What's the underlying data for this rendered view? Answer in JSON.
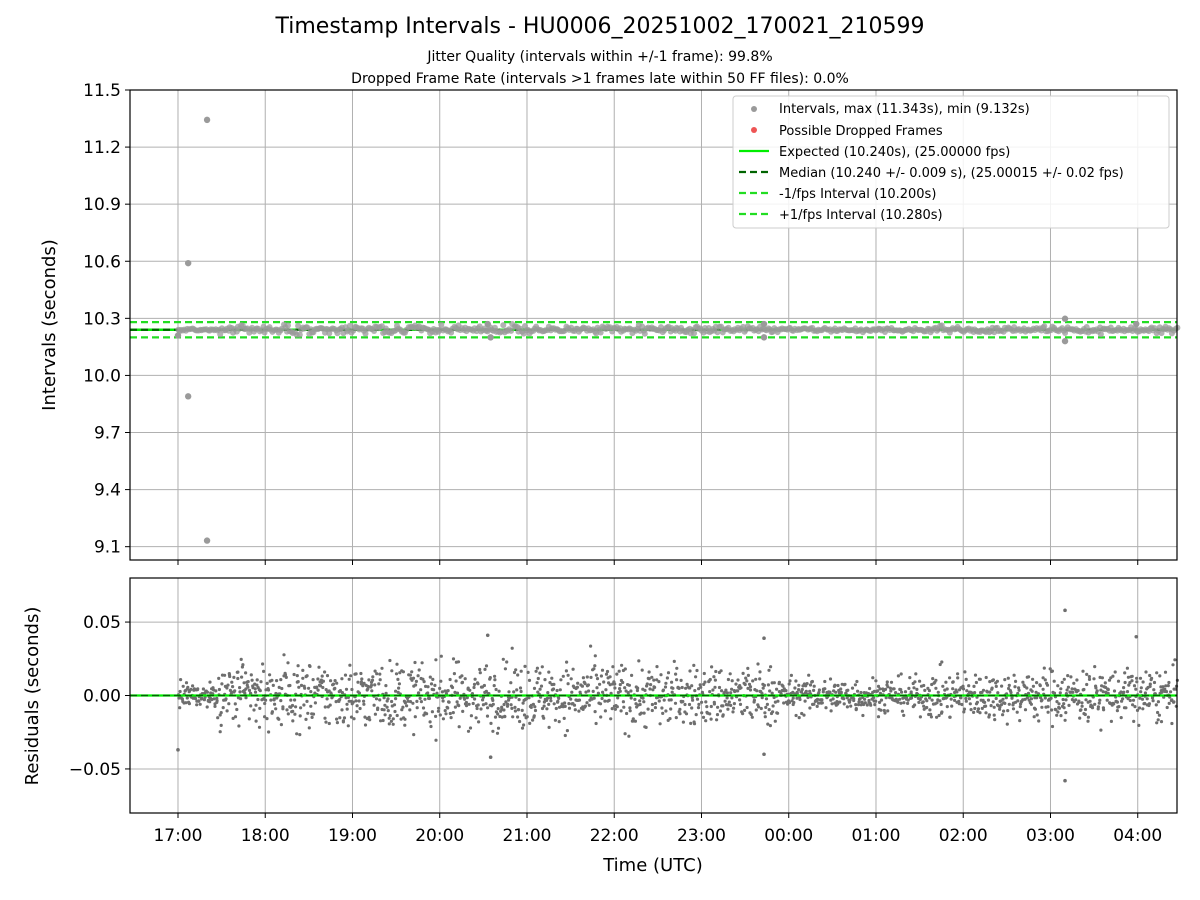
{
  "chart_data": [
    {
      "type": "scatter",
      "title": "Timestamp Intervals - HU0006_20251002_170021_210599",
      "subtitle_1": "Jitter Quality (intervals within +/-1 frame): 99.8%",
      "subtitle_2": "Dropped Frame Rate (intervals >1 frames late within 50 FF files): 0.0%",
      "ylabel": "Intervals (seconds)",
      "ylim": [
        9.03,
        11.5
      ],
      "yticks": [
        "9.1",
        "9.4",
        "9.7",
        "10.0",
        "10.3",
        "10.6",
        "10.9",
        "11.2",
        "11.5"
      ],
      "x_range_hours": [
        16.45,
        28.45
      ],
      "grid": true,
      "legend_position": "top-right",
      "legend": [
        "Intervals, max (11.343s), min (9.132s)",
        "Possible Dropped Frames",
        "Expected (10.240s), (25.00000 fps)",
        "Median (10.240 +/- 0.009 s), (25.00015 +/- 0.02 fps)",
        "-1/fps Interval (10.200s)",
        "+1/fps Interval (10.280s)"
      ],
      "reference_lines": {
        "expected": 10.24,
        "median": 10.24,
        "minus_one_fps": 10.2,
        "plus_one_fps": 10.28
      },
      "outliers": [
        {
          "time": "17:20",
          "value": 11.343
        },
        {
          "time": "17:07",
          "value": 10.59
        },
        {
          "time": "17:07",
          "value": 9.89
        },
        {
          "time": "17:20",
          "value": 9.132
        },
        {
          "time": "17:00",
          "value": 10.21
        },
        {
          "time": "20:33",
          "value": 10.27
        },
        {
          "time": "20:35",
          "value": 10.2
        },
        {
          "time": "23:43",
          "value": 10.27
        },
        {
          "time": "23:43",
          "value": 10.2
        },
        {
          "time": "03:10",
          "value": 10.298
        },
        {
          "time": "03:10",
          "value": 10.18
        },
        {
          "time": "03:59",
          "value": 10.27
        }
      ],
      "series_color": "#9a9a9a",
      "colors": {
        "expected": "#00ee00",
        "median": "#006400",
        "fps_bounds": "#22dd22",
        "dropped": "#ee4444"
      }
    },
    {
      "type": "scatter",
      "xlabel": "Time (UTC)",
      "ylabel": "Residuals (seconds)",
      "ylim": [
        -0.08,
        0.08
      ],
      "yticks": [
        "−0.05",
        "0.00",
        "0.05"
      ],
      "xticks": [
        "17:00",
        "18:00",
        "19:00",
        "20:00",
        "21:00",
        "22:00",
        "23:00",
        "00:00",
        "01:00",
        "02:00",
        "03:00",
        "04:00"
      ],
      "grid": true,
      "series_color": "#6e6e6e",
      "notable_points": [
        {
          "time": "17:00",
          "value": -0.037
        },
        {
          "time": "20:33",
          "value": 0.041
        },
        {
          "time": "20:35",
          "value": -0.042
        },
        {
          "time": "23:43",
          "value": 0.039
        },
        {
          "time": "23:43",
          "value": -0.04
        },
        {
          "time": "03:10",
          "value": 0.058
        },
        {
          "time": "03:10",
          "value": -0.058
        },
        {
          "time": "03:59",
          "value": 0.04
        }
      ]
    }
  ]
}
